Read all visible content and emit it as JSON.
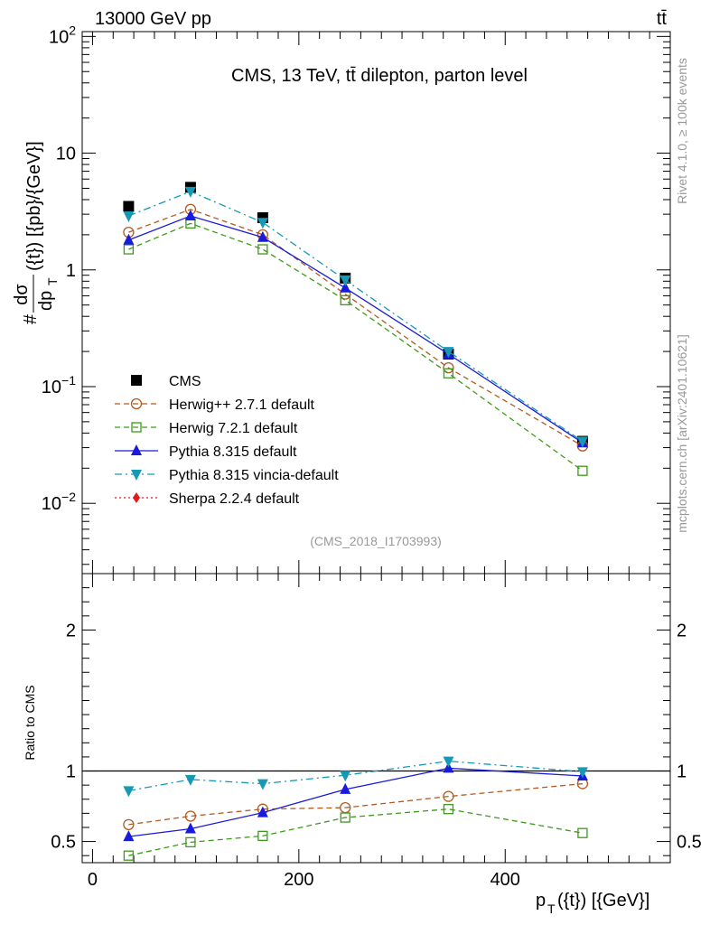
{
  "header": {
    "energy_label": "13000 GeV pp",
    "process_label": "tt̄"
  },
  "side": {
    "rivet_label": "Rivet 4.1.0, ≥ 100k events",
    "mcplots_label": "mcplots.cern.ch [arXiv:2401.10621]"
  },
  "colors": {
    "CMS": "#000000",
    "Herwig++ 2.7.1 default": "#b35a1f",
    "Herwig 7.2.1 default": "#3c9a1a",
    "Pythia 8.315 default": "#1a1adb",
    "Pythia 8.315 vincia-default": "#1799b5",
    "Sherpa 2.2.4 default": "#e31a1a"
  },
  "chart_data": [
    {
      "type": "line",
      "panel": "main",
      "title": "CMS, 13 TeV, tt̄ dilepton, parton level",
      "analysis_label": "(CMS_2018_I1703993)",
      "ylabel": "dσ/dp_T({t}) [{pb}/{GeV}]",
      "ylabel_num": "dσ",
      "ylabel_den": "dp",
      "ylabel_sub": "T",
      "ylabel_arg": "({t})",
      "ylabel_units": "[{pb}/{GeV}]",
      "ylabel_hash": "#",
      "yscale": "log",
      "xlim": [
        -10,
        560
      ],
      "ylim": [
        0.0025,
        110
      ],
      "yticks": [
        {
          "v": 0.01,
          "base": "10",
          "exp": "−2"
        },
        {
          "v": 0.1,
          "base": "10",
          "exp": "−1"
        },
        {
          "v": 1,
          "base": "1",
          "exp": ""
        },
        {
          "v": 10,
          "base": "10",
          "exp": ""
        },
        {
          "v": 100,
          "base": "10",
          "exp": "2"
        }
      ],
      "x": [
        35,
        95,
        165,
        245,
        345,
        475
      ],
      "series": [
        {
          "name": "CMS",
          "style": "data",
          "marker": "square",
          "values": [
            3.5,
            5.1,
            2.8,
            0.85,
            0.19,
            0.034
          ]
        },
        {
          "name": "Herwig++ 2.7.1 default",
          "style": "dashed",
          "marker": "circle-open",
          "values": [
            2.1,
            3.3,
            2.0,
            0.62,
            0.145,
            0.031
          ]
        },
        {
          "name": "Herwig 7.2.1 default",
          "style": "dashed",
          "marker": "square-open",
          "values": [
            1.5,
            2.5,
            1.5,
            0.55,
            0.13,
            0.019
          ]
        },
        {
          "name": "Pythia 8.315 default",
          "style": "solid",
          "marker": "triangle-up",
          "values": [
            1.8,
            2.9,
            1.9,
            0.7,
            0.19,
            0.033
          ]
        },
        {
          "name": "Pythia 8.315 vincia-default",
          "style": "dashdot",
          "marker": "triangle-down",
          "values": [
            2.9,
            4.7,
            2.55,
            0.82,
            0.2,
            0.034
          ]
        }
      ],
      "legend": [
        "CMS",
        "Herwig++ 2.7.1 default",
        "Herwig 7.2.1 default",
        "Pythia 8.315 default",
        "Pythia 8.315 vincia-default",
        "Sherpa 2.2.4 default"
      ],
      "legend_position": "lower-left"
    },
    {
      "type": "line",
      "panel": "ratio",
      "ylabel": "Ratio to CMS",
      "xlabel": "p_T({t}) [{GeV}]",
      "xlabel_main": "p",
      "xlabel_sub": "T",
      "xlabel_rest": "({t}) [{GeV}]",
      "xlim": [
        -10,
        560
      ],
      "ylim": [
        0.35,
        2.4
      ],
      "yticks": [
        "0.5",
        "1",
        "2"
      ],
      "xticks": [
        "0",
        "200",
        "400"
      ],
      "reference_line": 1,
      "x": [
        35,
        95,
        165,
        245,
        345,
        475
      ],
      "series": [
        {
          "name": "Herwig++ 2.7.1 default",
          "style": "dashed",
          "marker": "circle-open",
          "values": [
            0.62,
            0.68,
            0.73,
            0.74,
            0.82,
            0.91
          ]
        },
        {
          "name": "Herwig 7.2.1 default",
          "style": "dashed",
          "marker": "square-open",
          "values": [
            0.4,
            0.495,
            0.54,
            0.67,
            0.73,
            0.56
          ]
        },
        {
          "name": "Pythia 8.315 default",
          "style": "solid",
          "marker": "triangle-up",
          "values": [
            0.535,
            0.59,
            0.705,
            0.87,
            1.02,
            0.965
          ]
        },
        {
          "name": "Pythia 8.315 vincia-default",
          "style": "dashdot",
          "marker": "triangle-down",
          "values": [
            0.86,
            0.94,
            0.91,
            0.97,
            1.07,
            0.995
          ]
        }
      ]
    }
  ]
}
